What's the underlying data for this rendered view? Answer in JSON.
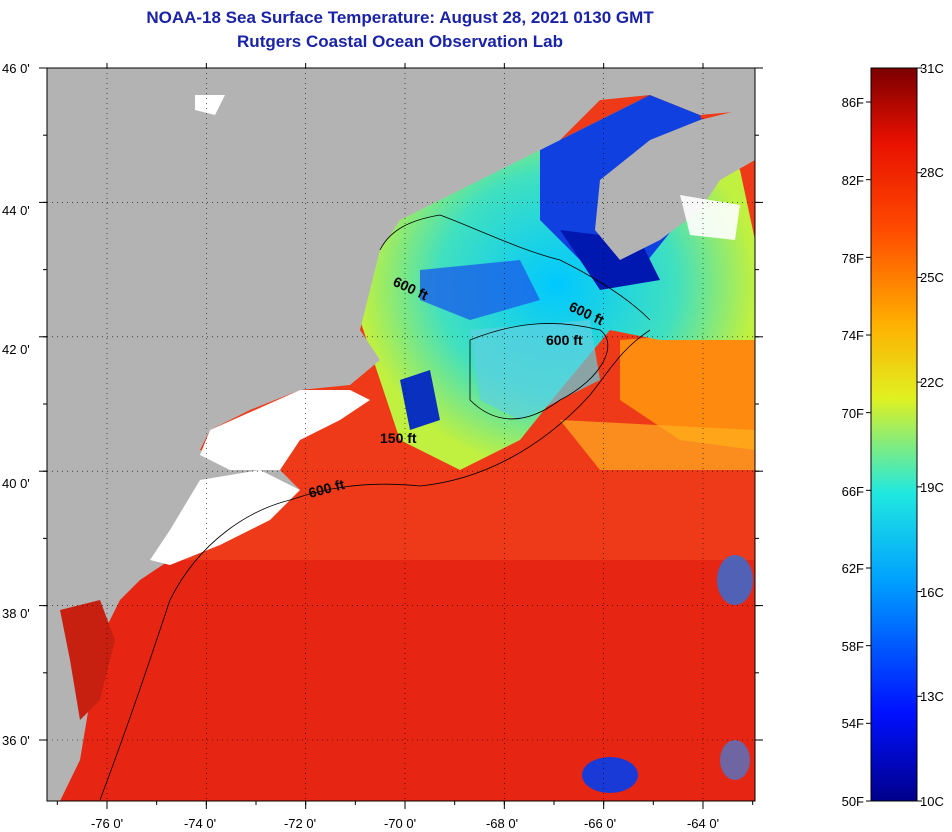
{
  "header": {
    "title": "NOAA-18 Sea Surface Temperature:  August 28, 2021 0130 GMT",
    "subtitle": "Rutgers Coastal Ocean Observation Lab"
  },
  "map": {
    "lat_labels": [
      "46 0'",
      "44 0'",
      "42 0'",
      "40 0'",
      "38 0'",
      "36 0'"
    ],
    "lat_values": [
      46,
      44,
      42,
      40,
      38,
      36
    ],
    "lon_labels": [
      "-76 0'",
      "-74 0'",
      "-72 0'",
      "-70 0'",
      "-68 0'",
      "-66 0'",
      "-64 0'"
    ],
    "lon_values": [
      -76,
      -74,
      -72,
      -70,
      -68,
      -66,
      -64
    ],
    "isobaths": [
      {
        "label": "600 ft"
      },
      {
        "label": "600 ft"
      },
      {
        "label": "600 ft"
      },
      {
        "label": "150 ft"
      },
      {
        "label": "600 ft"
      }
    ],
    "colors": {
      "land": "#b3b3b3",
      "cloud": "#ffffff",
      "warm": "#f0301a",
      "cold": "#1030e0"
    }
  },
  "colorbar": {
    "fahrenheit_labels": [
      "86F",
      "82F",
      "78F",
      "74F",
      "70F",
      "66F",
      "62F",
      "58F",
      "54F",
      "50F"
    ],
    "celsius_labels": [
      "31C",
      "28C",
      "25C",
      "22C",
      "19C",
      "16C",
      "13C",
      "10C"
    ]
  }
}
